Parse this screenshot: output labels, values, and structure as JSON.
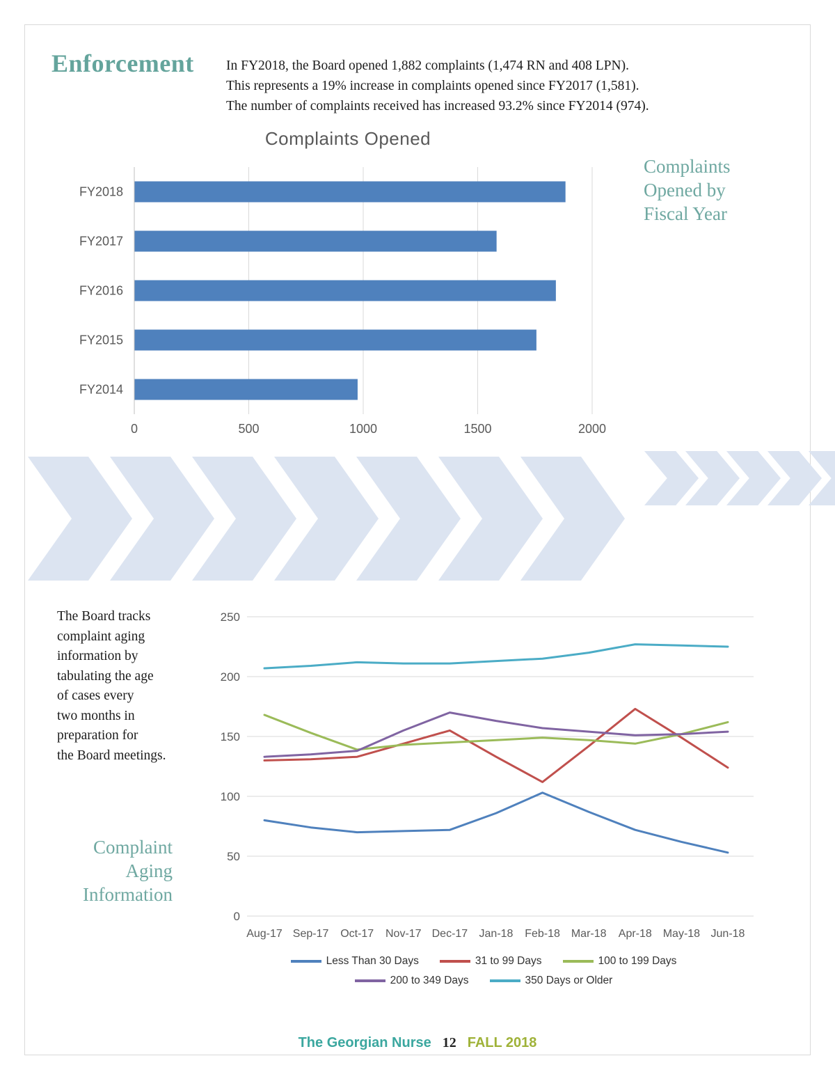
{
  "header": {
    "section_title": "Enforcement",
    "intro": "In FY2018, the Board opened 1,882 complaints (1,474 RN and 408 LPN).\nThis represents a 19% increase in complaints opened since FY2017 (1,581).\nThe number of complaints received has increased 93.2% since FY2014 (974)."
  },
  "callouts": {
    "bar_chart_caption": "Complaints\nOpened by\nFiscal Year",
    "aging_paragraph": "The Board tracks\ncomplaint aging\ninformation by\ntabulating the age\nof cases every\ntwo months in\npreparation for\nthe Board meetings.",
    "line_chart_caption": "Complaint\nAging\nInformation"
  },
  "footer": {
    "publication": "The Georgian Nurse",
    "page_number": "12",
    "issue": "FALL 2018"
  },
  "colors": {
    "teal_heading": "#64a49c",
    "bar_blue": "#4F81BD",
    "chevron_blue": "#dce4f1",
    "gridline_gray": "#d9d9d9",
    "footer_teal": "#3ba79f",
    "footer_green": "#9fb238"
  },
  "chart_data": [
    {
      "type": "bar",
      "orientation": "horizontal",
      "title": "Complaints Opened",
      "categories": [
        "FY2018",
        "FY2017",
        "FY2016",
        "FY2015",
        "FY2014"
      ],
      "values": [
        1882,
        1581,
        1840,
        1755,
        974
      ],
      "xlim": [
        0,
        2000
      ],
      "xticks": [
        0,
        500,
        1000,
        1500,
        2000
      ],
      "bar_color": "#4F81BD",
      "grid": true,
      "legend": "none"
    },
    {
      "type": "line",
      "title": "",
      "x": [
        "Aug-17",
        "Sep-17",
        "Oct-17",
        "Nov-17",
        "Dec-17",
        "Jan-18",
        "Feb-18",
        "Mar-18",
        "Apr-18",
        "May-18",
        "Jun-18"
      ],
      "ylim": [
        0,
        250
      ],
      "yticks": [
        0,
        50,
        100,
        150,
        200,
        250
      ],
      "grid": true,
      "legend_position": "bottom",
      "series": [
        {
          "name": "Less Than 30 Days",
          "color": "#4F81BD",
          "values": [
            80,
            74,
            70,
            71,
            72,
            86,
            103,
            87,
            72,
            62,
            53
          ]
        },
        {
          "name": "31 to 99 Days",
          "color": "#C0504D",
          "values": [
            130,
            131,
            133,
            144,
            155,
            133,
            112,
            142,
            173,
            149,
            124
          ]
        },
        {
          "name": "100 to 199 Days",
          "color": "#9BBB59",
          "values": [
            168,
            153,
            139,
            143,
            145,
            147,
            149,
            147,
            144,
            152,
            162
          ]
        },
        {
          "name": "200 to 349 Days",
          "color": "#8064A2",
          "values": [
            133,
            135,
            138,
            155,
            170,
            163,
            157,
            154,
            151,
            152,
            154
          ]
        },
        {
          "name": "350 Days or Older",
          "color": "#4BACC6",
          "values": [
            207,
            209,
            212,
            211,
            211,
            213,
            215,
            220,
            227,
            226,
            225
          ]
        }
      ],
      "legend_rows": [
        [
          "Less Than 30 Days",
          "31 to 99 Days",
          "100 to 199 Days"
        ],
        [
          "200 to 349 Days",
          "350 Days or Older"
        ]
      ]
    }
  ]
}
